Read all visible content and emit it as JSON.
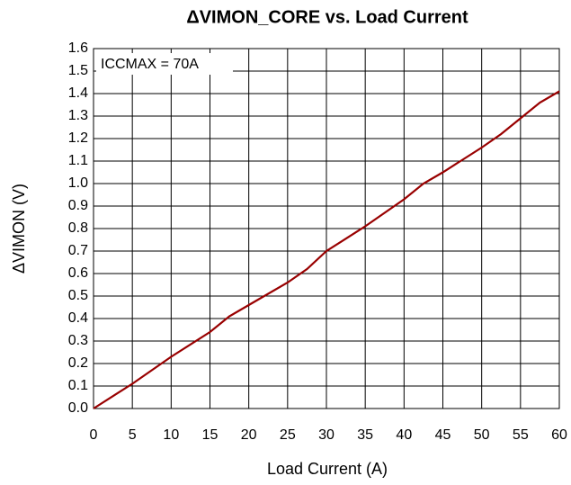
{
  "chart_data": {
    "type": "line",
    "title": "ΔVIMON_CORE vs. Load Current",
    "x_label": "Load Current (A)",
    "y_label": "ΔVIMON (V)",
    "annotation": "ICCMAX = 70A",
    "x": [
      0,
      5,
      10,
      15,
      17.5,
      20,
      25,
      27.5,
      30,
      35,
      40,
      42.5,
      45,
      50,
      52.5,
      55,
      57.5,
      60
    ],
    "series": [
      {
        "name": "ΔVIMON_CORE",
        "color": "#990000",
        "values": [
          0,
          0.11,
          0.23,
          0.34,
          0.41,
          0.46,
          0.56,
          0.62,
          0.7,
          0.81,
          0.93,
          1.0,
          1.05,
          1.16,
          1.22,
          1.29,
          1.36,
          1.41
        ]
      }
    ],
    "xlim": [
      0,
      60
    ],
    "xticks": [
      0,
      5,
      10,
      15,
      20,
      25,
      30,
      35,
      40,
      45,
      50,
      55,
      60
    ],
    "ylim": [
      0,
      1.6
    ],
    "yticks": [
      {
        "value": 0,
        "label": "0.0"
      },
      0.1,
      0.2,
      0.3,
      0.4,
      0.5,
      0.6,
      0.7,
      0.8,
      0.9,
      {
        "value": 1,
        "label": "1.0"
      },
      1.1,
      1.2,
      1.3,
      1.4,
      1.5,
      1.6
    ],
    "grid": true
  }
}
